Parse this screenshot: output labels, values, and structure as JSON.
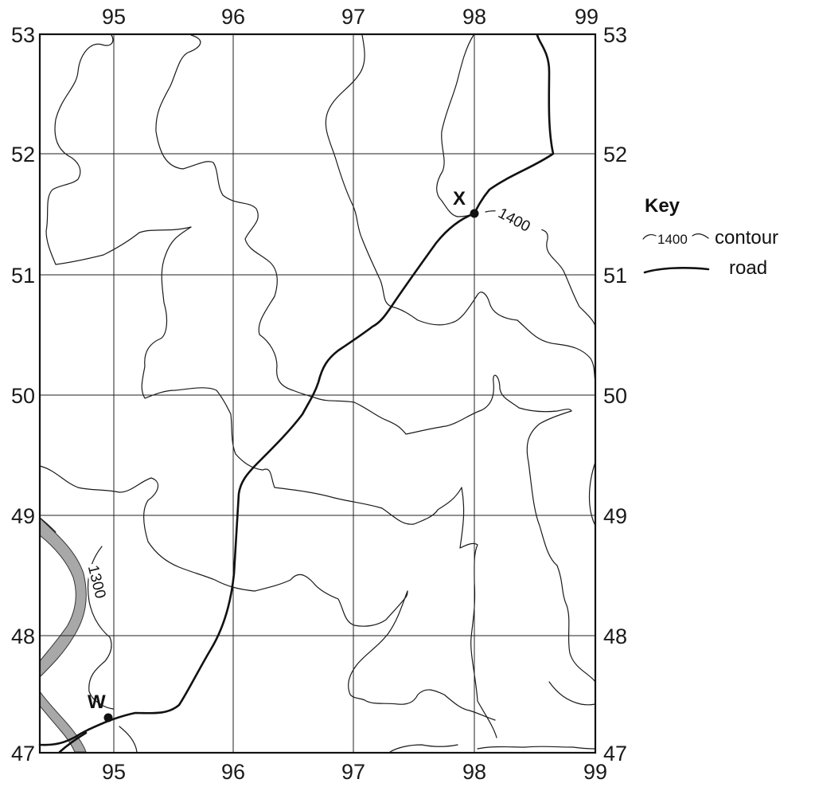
{
  "map": {
    "x_ticks": [
      "95",
      "96",
      "97",
      "98",
      "99"
    ],
    "y_ticks": [
      "53",
      "52",
      "51",
      "50",
      "49",
      "48",
      "47"
    ],
    "points": [
      {
        "id": "W",
        "label": "W"
      },
      {
        "id": "X",
        "label": "X"
      }
    ],
    "contours": [
      {
        "label": "1400"
      },
      {
        "label": "1300"
      }
    ],
    "colors": {
      "river": "#a8a8a8",
      "lines": "#1a1a1a"
    }
  },
  "key": {
    "title": "Key",
    "contour_sample": "1400",
    "contour_label": "contour",
    "road_label": "road"
  }
}
